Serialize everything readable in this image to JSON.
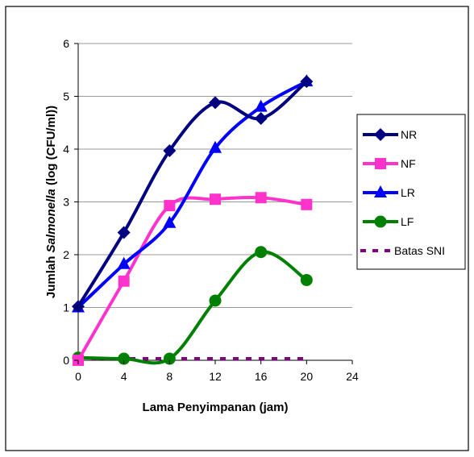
{
  "chart_data": {
    "type": "line",
    "xlabel": "Lama Penyimpanan (jam)",
    "ylabel_parts": [
      "Jumlah ",
      "Salmonella",
      "  (log (CFU/ml))"
    ],
    "xlim": [
      0,
      24
    ],
    "ylim": [
      0,
      6
    ],
    "x_ticks": [
      "0",
      "4",
      "8",
      "12",
      "16",
      "20",
      "24"
    ],
    "y_ticks": [
      "0",
      "1",
      "2",
      "3",
      "4",
      "5",
      "6"
    ],
    "grid": "horizontal",
    "legend_position": "right",
    "series": [
      {
        "name": "NR",
        "color": "#000080",
        "marker": "diamond",
        "dashed": false,
        "x": [
          0,
          4,
          8,
          12,
          16,
          20
        ],
        "y": [
          1.02,
          2.42,
          3.97,
          4.88,
          4.58,
          5.28
        ]
      },
      {
        "name": "NF",
        "color": "#ff33cc",
        "marker": "square",
        "dashed": false,
        "x": [
          0,
          4,
          8,
          12,
          16,
          20
        ],
        "y": [
          0.0,
          1.5,
          2.93,
          3.05,
          3.08,
          2.95
        ]
      },
      {
        "name": "LR",
        "color": "#0000ff",
        "marker": "triangle",
        "dashed": false,
        "x": [
          0,
          4,
          8,
          12,
          16,
          20
        ],
        "y": [
          1.0,
          1.82,
          2.6,
          4.02,
          4.8,
          5.28
        ]
      },
      {
        "name": "LF",
        "color": "#008000",
        "marker": "circle",
        "dashed": false,
        "x": [
          0,
          4,
          8,
          12,
          16,
          20
        ],
        "y": [
          0.05,
          0.03,
          0.03,
          1.13,
          2.05,
          1.52
        ]
      },
      {
        "name": "Batas SNI",
        "color": "#800080",
        "marker": "none",
        "dashed": true,
        "x": [
          0,
          4,
          8,
          12,
          16,
          20
        ],
        "y": [
          0.0,
          0.0,
          0.0,
          0.0,
          0.0,
          0.0
        ]
      }
    ]
  }
}
